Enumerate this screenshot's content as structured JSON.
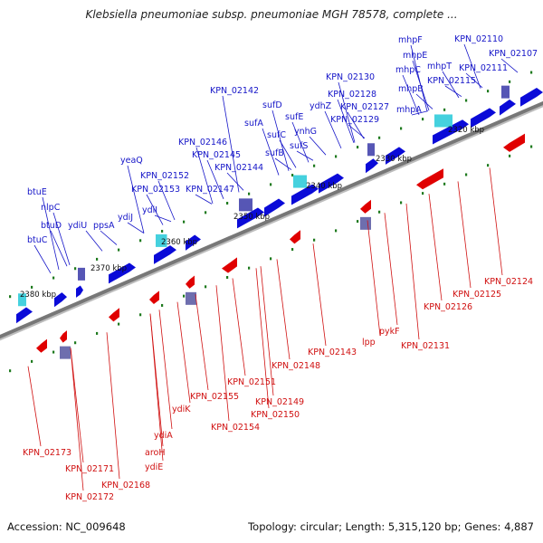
{
  "title": "Klebsiella pneumoniae subsp. pneumoniae MGH 78578, complete ...",
  "footer": {
    "accession": "Accession: NC_009648",
    "summary": "Topology: circular; Length: 5,315,120 bp; Genes: 4,887"
  },
  "colors": {
    "forward_gene": "#0a0ad8",
    "reverse_gene": "#e00000",
    "forward_label": "#1515c8",
    "reverse_label": "#d01010",
    "backbone": "#777777",
    "tick": "#1e7a1e"
  },
  "scale_ticks": [
    "2320 kbp",
    "2330 kbp",
    "2340 kbp",
    "2350 kbp",
    "2360 kbp",
    "2370 kbp",
    "2380 kbp"
  ],
  "forward_labels": [
    "btuC",
    "btuD",
    "nlpC",
    "btuE",
    "ydiU",
    "ppsA",
    "ydiJ",
    "ydiI",
    "KPN_02153",
    "KPN_02152",
    "yeaQ",
    "KPN_02147",
    "KPN_02144",
    "KPN_02145",
    "KPN_02146",
    "sufS",
    "sufB",
    "sufC",
    "ynhG",
    "sufA",
    "sufE",
    "sufD",
    "KPN_02142",
    "ydhZ",
    "KPN_02129",
    "KPN_02127",
    "KPN_02128",
    "KPN_02130",
    "mhpA",
    "mhpB",
    "mhpC",
    "mhpE",
    "mhpF",
    "mhpT",
    "KPN_02115",
    "KPN_02111",
    "KPN_02110",
    "KPN_02107"
  ],
  "reverse_labels": [
    "KPN_02173",
    "KPN_02171",
    "KPN_02172",
    "KPN_02168",
    "aroH",
    "ydiE",
    "ydiA",
    "ydiK",
    "KPN_02155",
    "KPN_02154",
    "KPN_02151",
    "KPN_02149",
    "KPN_02150",
    "KPN_02148",
    "KPN_02143",
    "lpp",
    "pykF",
    "KPN_02131",
    "KPN_02126",
    "KPN_02125",
    "KPN_02124"
  ]
}
